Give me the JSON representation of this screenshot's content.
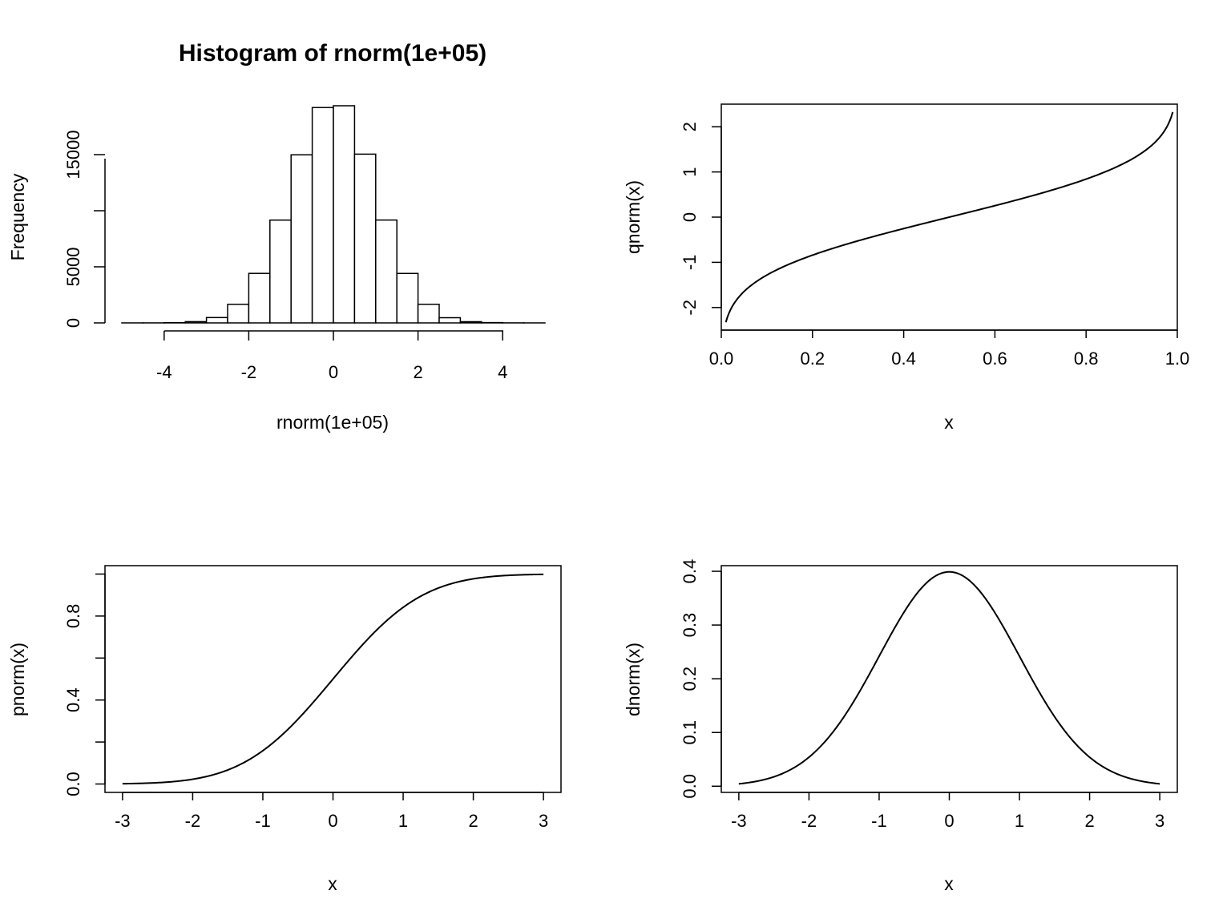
{
  "chart_data": [
    {
      "type": "bar",
      "title": "Histogram of rnorm(1e+05)",
      "xlabel": "rnorm(1e+05)",
      "ylabel": "Frequency",
      "bin_edges": [
        -5.0,
        -4.5,
        -4.0,
        -3.5,
        -3.0,
        -2.5,
        -2.0,
        -1.5,
        -1.0,
        -0.5,
        0.0,
        0.5,
        1.0,
        1.5,
        2.0,
        2.5,
        3.0,
        3.5,
        4.0,
        4.5,
        5.0
      ],
      "values": [
        1,
        3,
        22,
        110,
        476,
        1653,
        4414,
        9164,
        14986,
        19198,
        19358,
        15043,
        9169,
        4409,
        1655,
        462,
        106,
        27,
        4,
        1
      ],
      "xlim": [
        -5,
        5
      ],
      "xticks": [
        "-4",
        "-2",
        "0",
        "2",
        "4"
      ],
      "ylim": [
        0,
        19500
      ],
      "yticks": [
        "0",
        "5000",
        "15000"
      ]
    },
    {
      "type": "line",
      "function": "qnorm",
      "title": "",
      "xlabel": "x",
      "ylabel": "qnorm(x)",
      "x_range": [
        0.01,
        0.99
      ],
      "xlim": [
        0,
        1
      ],
      "xticks": [
        "0.0",
        "0.2",
        "0.4",
        "0.6",
        "0.8",
        "1.0"
      ],
      "ylim": [
        -2.5,
        2.5
      ],
      "yticks": [
        "-2",
        "-1",
        "0",
        "1",
        "2"
      ],
      "key_points": [
        {
          "x": 0.01,
          "y": -2.326
        },
        {
          "x": 0.5,
          "y": 0
        },
        {
          "x": 0.99,
          "y": 2.326
        }
      ]
    },
    {
      "type": "line",
      "function": "pnorm",
      "title": "",
      "xlabel": "x",
      "ylabel": "pnorm(x)",
      "x_range": [
        -3,
        3
      ],
      "xlim": [
        -3.25,
        3.25
      ],
      "xticks": [
        "-3",
        "-2",
        "-1",
        "0",
        "1",
        "2",
        "3"
      ],
      "ylim": [
        -0.04,
        1.04
      ],
      "yticks": [
        "0.0",
        "0.4",
        "0.8"
      ],
      "key_points": [
        {
          "x": -3,
          "y": 0.0013
        },
        {
          "x": 0,
          "y": 0.5
        },
        {
          "x": 3,
          "y": 0.9987
        }
      ]
    },
    {
      "type": "line",
      "function": "dnorm",
      "title": "",
      "xlabel": "x",
      "ylabel": "dnorm(x)",
      "x_range": [
        -3,
        3
      ],
      "xlim": [
        -3.25,
        3.25
      ],
      "xticks": [
        "-3",
        "-2",
        "-1",
        "0",
        "1",
        "2",
        "3"
      ],
      "ylim": [
        -0.0115,
        0.4105
      ],
      "yticks": [
        "0.0",
        "0.1",
        "0.2",
        "0.3",
        "0.4"
      ],
      "key_points": [
        {
          "x": -3,
          "y": 0.0044
        },
        {
          "x": 0,
          "y": 0.3989
        },
        {
          "x": 3,
          "y": 0.0044
        }
      ]
    }
  ]
}
